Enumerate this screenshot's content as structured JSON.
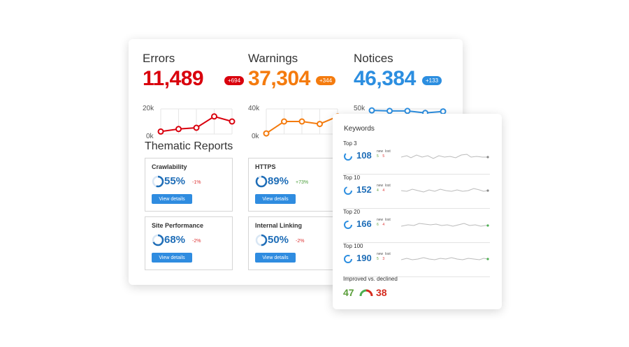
{
  "metrics": [
    {
      "label": "Errors",
      "value": "11,489",
      "badge": "+694",
      "color": "#d9000d",
      "axis_top": "20k",
      "axis_bottom": "0k",
      "trend": [
        2,
        4,
        5,
        14,
        10
      ]
    },
    {
      "label": "Warnings",
      "value": "37,304",
      "badge": "+344",
      "color": "#f47b0e",
      "axis_top": "40k",
      "axis_bottom": "0k",
      "trend": [
        1,
        20,
        20,
        16,
        28
      ]
    },
    {
      "label": "Notices",
      "value": "46,384",
      "badge": "+133",
      "color": "#2c8ee0",
      "axis_top": "50k",
      "axis_bottom": "",
      "trend": [
        47,
        46,
        46,
        42,
        45
      ]
    }
  ],
  "thematic": {
    "title": "Thematic Reports",
    "cards": [
      {
        "title": "Crawlability",
        "percent": "55%",
        "percent_value": 55,
        "delta": "-1%",
        "delta_color": "#d33",
        "button": "View details"
      },
      {
        "title": "HTTPS",
        "percent": "89%",
        "percent_value": 89,
        "delta": "+73%",
        "delta_color": "#4a9e3a",
        "button": "View details"
      },
      {
        "title": "Site Performance",
        "percent": "68%",
        "percent_value": 68,
        "delta": "-2%",
        "delta_color": "#d33",
        "button": "View details"
      },
      {
        "title": "Internal Linking",
        "percent": "50%",
        "percent_value": 50,
        "delta": "-2%",
        "delta_color": "#d33",
        "button": "View details"
      }
    ]
  },
  "keywords": {
    "title": "Keywords",
    "rows": [
      {
        "label": "Top 3",
        "value": "108",
        "new_label": "new",
        "lost_label": "lost",
        "new": "5",
        "lost": "5",
        "dot_color": "#888"
      },
      {
        "label": "Top 10",
        "value": "152",
        "new_label": "new",
        "lost_label": "lost",
        "new": "4",
        "lost": "4",
        "dot_color": "#888"
      },
      {
        "label": "Top 20",
        "value": "166",
        "new_label": "new",
        "lost_label": "lost",
        "new": "6",
        "lost": "4",
        "dot_color": "#4caf50"
      },
      {
        "label": "Top 100",
        "value": "190",
        "new_label": "new",
        "lost_label": "lost",
        "new": "5",
        "lost": "3",
        "dot_color": "#4caf50"
      }
    ],
    "improved_label": "Improved vs. declined",
    "improved": "47",
    "declined": "38"
  }
}
